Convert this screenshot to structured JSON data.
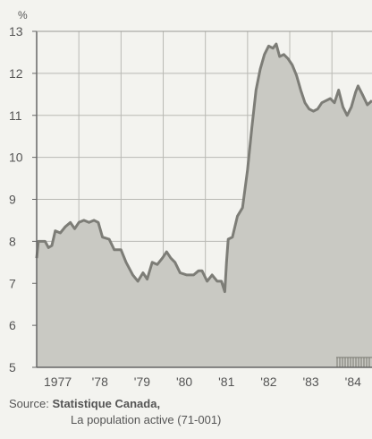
{
  "chart_data": {
    "type": "area",
    "ylabel": "%",
    "ylim": [
      5,
      13
    ],
    "yticks": [
      5,
      6,
      7,
      8,
      9,
      10,
      11,
      12,
      13
    ],
    "xlim": [
      1977.0,
      1984.95
    ],
    "xticks": [
      {
        "x": 1977.5,
        "label": "1977"
      },
      {
        "x": 1978.5,
        "label": "'78"
      },
      {
        "x": 1979.5,
        "label": "'79"
      },
      {
        "x": 1980.5,
        "label": "'80"
      },
      {
        "x": 1981.5,
        "label": "'81"
      },
      {
        "x": 1982.5,
        "label": "'82"
      },
      {
        "x": 1983.5,
        "label": "'83"
      },
      {
        "x": 1984.5,
        "label": "'84"
      }
    ],
    "grid": true,
    "series": [
      {
        "points": [
          [
            1977.0,
            7.6
          ],
          [
            1977.04,
            8.0
          ],
          [
            1977.2,
            8.0
          ],
          [
            1977.28,
            7.85
          ],
          [
            1977.36,
            7.9
          ],
          [
            1977.44,
            8.25
          ],
          [
            1977.56,
            8.2
          ],
          [
            1977.68,
            8.35
          ],
          [
            1977.8,
            8.45
          ],
          [
            1977.9,
            8.3
          ],
          [
            1978.0,
            8.45
          ],
          [
            1978.12,
            8.5
          ],
          [
            1978.24,
            8.45
          ],
          [
            1978.36,
            8.5
          ],
          [
            1978.46,
            8.45
          ],
          [
            1978.56,
            8.1
          ],
          [
            1978.72,
            8.05
          ],
          [
            1978.84,
            7.8
          ],
          [
            1979.0,
            7.8
          ],
          [
            1979.12,
            7.5
          ],
          [
            1979.28,
            7.2
          ],
          [
            1979.4,
            7.05
          ],
          [
            1979.52,
            7.25
          ],
          [
            1979.62,
            7.1
          ],
          [
            1979.74,
            7.5
          ],
          [
            1979.86,
            7.45
          ],
          [
            1979.98,
            7.6
          ],
          [
            1980.08,
            7.75
          ],
          [
            1980.18,
            7.6
          ],
          [
            1980.28,
            7.5
          ],
          [
            1980.4,
            7.25
          ],
          [
            1980.56,
            7.2
          ],
          [
            1980.72,
            7.2
          ],
          [
            1980.84,
            7.3
          ],
          [
            1980.92,
            7.3
          ],
          [
            1981.04,
            7.05
          ],
          [
            1981.16,
            7.2
          ],
          [
            1981.28,
            7.05
          ],
          [
            1981.38,
            7.05
          ],
          [
            1981.46,
            6.8
          ],
          [
            1981.5,
            7.5
          ],
          [
            1981.54,
            8.05
          ],
          [
            1981.64,
            8.1
          ],
          [
            1981.76,
            8.6
          ],
          [
            1981.88,
            8.8
          ],
          [
            1982.0,
            9.7
          ],
          [
            1982.1,
            10.7
          ],
          [
            1982.2,
            11.6
          ],
          [
            1982.3,
            12.1
          ],
          [
            1982.4,
            12.45
          ],
          [
            1982.5,
            12.65
          ],
          [
            1982.6,
            12.6
          ],
          [
            1982.68,
            12.7
          ],
          [
            1982.76,
            12.4
          ],
          [
            1982.86,
            12.45
          ],
          [
            1982.96,
            12.35
          ],
          [
            1983.06,
            12.2
          ],
          [
            1983.16,
            11.95
          ],
          [
            1983.26,
            11.6
          ],
          [
            1983.36,
            11.3
          ],
          [
            1983.46,
            11.15
          ],
          [
            1983.56,
            11.1
          ],
          [
            1983.66,
            11.15
          ],
          [
            1983.76,
            11.3
          ],
          [
            1983.86,
            11.35
          ],
          [
            1983.96,
            11.4
          ],
          [
            1984.06,
            11.3
          ],
          [
            1984.16,
            11.6
          ],
          [
            1984.26,
            11.2
          ],
          [
            1984.36,
            11.0
          ],
          [
            1984.46,
            11.2
          ],
          [
            1984.56,
            11.55
          ],
          [
            1984.62,
            11.7
          ],
          [
            1984.72,
            11.5
          ],
          [
            1984.84,
            11.25
          ],
          [
            1984.95,
            11.35
          ]
        ]
      }
    ]
  },
  "source": {
    "prefix": "Source:",
    "organization": "Statistique Canada,",
    "publication": "La population active (71-001)"
  }
}
